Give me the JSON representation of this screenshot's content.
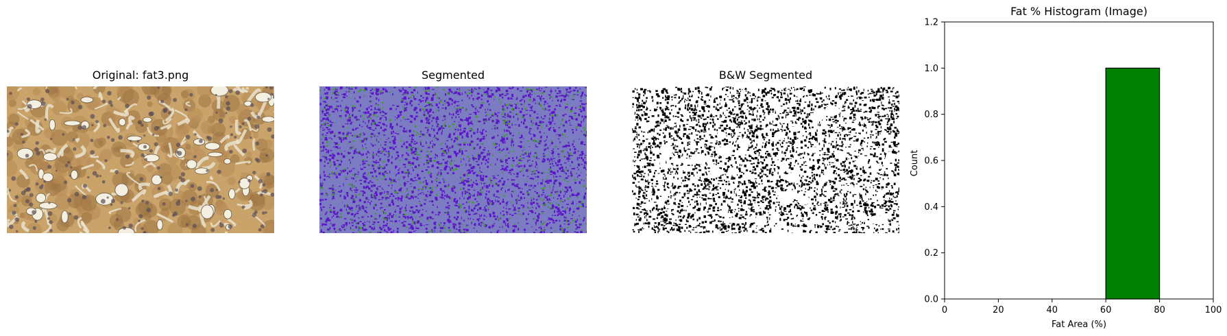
{
  "panels": [
    {
      "title": "Original: fat3.png"
    },
    {
      "title": "Segmented"
    },
    {
      "title": "B&W Segmented"
    }
  ],
  "colors": {
    "tissue_base": "#c9a36a",
    "tissue_dark": "#9c7444",
    "tissue_pale": "#e9e3cf",
    "seg_base": "#7b7cc2",
    "seg_purple": "#5b16c6",
    "seg_green": "#3f9a22",
    "bar_fill": "#008000",
    "bar_edge": "#000000"
  },
  "chart_data": {
    "type": "bar",
    "title": "Fat % Histogram (Image)",
    "xlabel": "Fat Area (%)",
    "ylabel": "Count",
    "xlim": [
      0,
      100
    ],
    "ylim": [
      0,
      1.2
    ],
    "xticks": [
      0,
      20,
      40,
      60,
      80,
      100
    ],
    "yticks": [
      0.0,
      0.2,
      0.4,
      0.6,
      0.8,
      1.0,
      1.2
    ],
    "bins": [
      {
        "start": 60,
        "end": 80,
        "count": 1
      }
    ],
    "grid": false
  }
}
